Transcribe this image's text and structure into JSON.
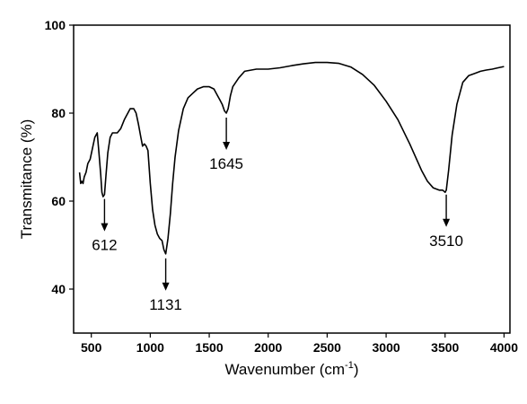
{
  "chart_data": {
    "type": "line",
    "title": "",
    "xlabel": "Wavenumber (cm",
    "xlabel_sup": "-1",
    "xlabel_close": ")",
    "ylabel": "Transmitance (%)",
    "xlim": [
      350,
      4050
    ],
    "ylim": [
      30,
      100
    ],
    "xticks": [
      500,
      1000,
      1500,
      2000,
      2500,
      3000,
      3500,
      4000
    ],
    "yticks": [
      40,
      60,
      80,
      100
    ],
    "grid": false,
    "line_color": "#000000",
    "series": [
      {
        "x": [
          400,
          410,
          420,
          430,
          440,
          455,
          470,
          490,
          510,
          530,
          550,
          565,
          580,
          590,
          600,
          612,
          625,
          640,
          660,
          680,
          700,
          720,
          750,
          780,
          800,
          830,
          860,
          880,
          900,
          920,
          935,
          950,
          965,
          980,
          1000,
          1020,
          1040,
          1060,
          1080,
          1100,
          1115,
          1131,
          1150,
          1170,
          1190,
          1210,
          1240,
          1280,
          1320,
          1360,
          1400,
          1450,
          1500,
          1540,
          1570,
          1590,
          1610,
          1630,
          1645,
          1660,
          1680,
          1700,
          1750,
          1800,
          1900,
          2000,
          2100,
          2200,
          2300,
          2400,
          2500,
          2600,
          2700,
          2800,
          2900,
          3000,
          3100,
          3200,
          3300,
          3350,
          3400,
          3450,
          3480,
          3500,
          3510,
          3530,
          3560,
          3600,
          3650,
          3700,
          3750,
          3800,
          3850,
          3900,
          3950,
          4000
        ],
        "y": [
          66.5,
          64.0,
          64.5,
          64.0,
          65.5,
          66.5,
          68.5,
          69.5,
          72.0,
          74.5,
          75.5,
          71.0,
          66.0,
          62.0,
          61.0,
          61.5,
          66.0,
          71.0,
          74.5,
          75.5,
          75.5,
          75.5,
          76.5,
          78.5,
          79.5,
          81.0,
          81.0,
          80.0,
          77.5,
          74.5,
          72.5,
          73.0,
          72.5,
          71.5,
          64.0,
          58.0,
          54.5,
          52.5,
          51.5,
          51.0,
          49.0,
          48.0,
          51.5,
          57.0,
          64.0,
          70.0,
          76.0,
          81.0,
          83.5,
          84.5,
          85.5,
          86.0,
          86.0,
          85.5,
          84.0,
          83.0,
          82.0,
          80.5,
          80.0,
          81.0,
          84.0,
          86.0,
          88.0,
          89.5,
          90.0,
          90.0,
          90.3,
          90.8,
          91.2,
          91.5,
          91.5,
          91.3,
          90.5,
          88.8,
          86.3,
          82.7,
          78.5,
          73.0,
          67.0,
          64.5,
          63.0,
          62.5,
          62.5,
          62.0,
          62.5,
          67.0,
          75.0,
          82.0,
          87.0,
          88.5,
          89.0,
          89.5,
          89.8,
          90.0,
          90.3,
          90.6
        ]
      }
    ],
    "annotations": [
      {
        "label": "612",
        "x": 612
      },
      {
        "label": "1131",
        "x": 1131
      },
      {
        "label": "1645",
        "x": 1645
      },
      {
        "label": "3510",
        "x": 3510
      }
    ]
  }
}
